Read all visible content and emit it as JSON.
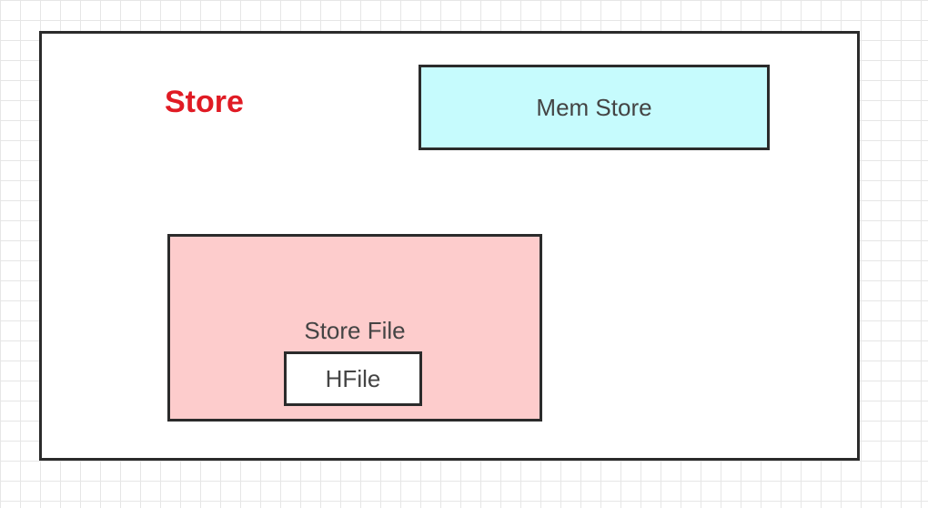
{
  "diagram": {
    "store": {
      "label": "Store",
      "label_color": "#e01b24",
      "fill": "#ffffff"
    },
    "mem_store": {
      "label": "Mem Store",
      "fill": "#c6fbfd"
    },
    "store_file": {
      "label": "Store File",
      "fill": "#fdcccc"
    },
    "hfile": {
      "label": "HFile",
      "fill": "#ffffff"
    }
  }
}
